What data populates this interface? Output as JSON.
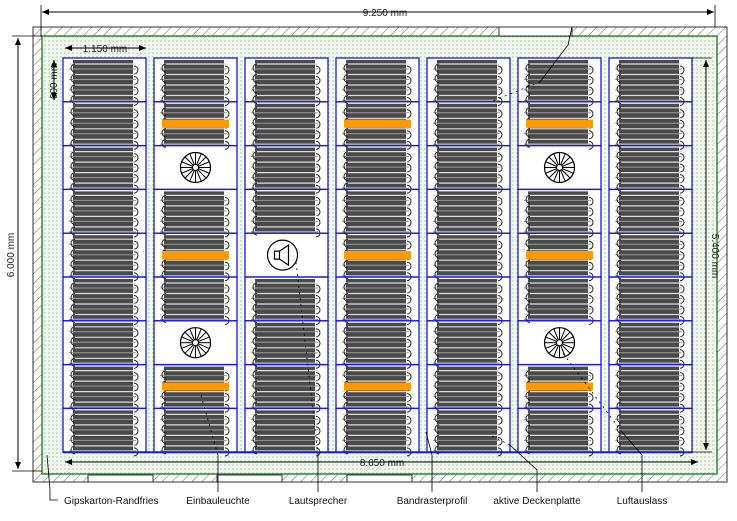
{
  "dimensions": {
    "total_width": "9.250 mm",
    "total_height": "6.000 mm",
    "field_width": "8.650 mm",
    "field_height": "5.400 mm",
    "panel_width": "1.150 mm",
    "panel_height": "600 mm"
  },
  "labels": [
    {
      "id": "gipskarton",
      "text": "Gipskarton-Randfries"
    },
    {
      "id": "einbauleuchte",
      "text": "Einbauleuchte"
    },
    {
      "id": "lautsprecher",
      "text": "Lautsprecher"
    },
    {
      "id": "bandrasterprofil",
      "text": "Bandrasterprofil"
    },
    {
      "id": "deckenplatte",
      "text": "aktive Deckenplatte"
    },
    {
      "id": "luftauslass",
      "text": "Luftauslass"
    }
  ],
  "grid": {
    "columns": 7,
    "rows": 9
  },
  "fixtures": {
    "air_outlets": [
      [
        1,
        2
      ],
      [
        1,
        6
      ],
      [
        5,
        2
      ],
      [
        5,
        6
      ]
    ],
    "speakers": [
      [
        2,
        4
      ]
    ],
    "lights": [
      [
        1,
        1
      ],
      [
        1,
        4
      ],
      [
        1,
        7
      ],
      [
        3,
        1
      ],
      [
        3,
        4
      ],
      [
        3,
        7
      ],
      [
        5,
        1
      ],
      [
        5,
        4
      ],
      [
        5,
        7
      ]
    ]
  },
  "colors": {
    "grid_line": "#1a1adc",
    "panel": "#4a4a4a",
    "light": "#ff9900",
    "border": "#2e8b2e"
  }
}
